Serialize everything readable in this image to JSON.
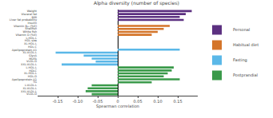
{
  "chart_data": {
    "type": "bar",
    "orientation": "horizontal",
    "title": "Alpha diversity (number of species)",
    "xlabel": "Spearman correlation",
    "categories": [
      "Weight",
      "Visceral fat",
      "BMI",
      "Liver fat probability",
      "Insulin",
      "Vitamin B₁₂ (%E)",
      "Shellfish",
      "White fish",
      "Vitamin D (%E)",
      "L-HDL-L",
      "HDL size",
      "XL-HDL-L",
      "HDL-C",
      "Apolipoprotein A1",
      "XL-VLDL-L",
      "GlycA",
      "MUFA",
      "VLDL-D",
      "XXL-VLDL-L",
      "L-HDL-L",
      "HDLC",
      "XL-HDL-L",
      "HDL-D",
      "Apolipoprotein A1",
      "TG",
      "L-VLDL-L",
      "XL-VLDL-L",
      "XXL-VLDL-L",
      "VLDL-D"
    ],
    "series": [
      {
        "name": "Personal",
        "color": "#5c3080",
        "values": [
          0.185,
          0.17,
          0.155,
          0.165,
          0.0,
          null,
          null,
          null,
          null,
          null,
          null,
          null,
          null,
          null,
          null,
          null,
          null,
          null,
          null,
          null,
          null,
          null,
          null,
          null,
          null,
          null,
          null,
          null,
          null
        ]
      },
      {
        "name": "Habitual diet",
        "color": "#d4752a",
        "values": [
          null,
          null,
          null,
          null,
          null,
          0.13,
          0.115,
          0.1,
          0.085,
          null,
          null,
          null,
          null,
          null,
          null,
          null,
          null,
          null,
          null,
          null,
          null,
          null,
          null,
          null,
          null,
          null,
          null,
          null,
          null
        ]
      },
      {
        "name": "Fasting",
        "color": "#5bb8e8",
        "values": [
          null,
          null,
          null,
          null,
          null,
          null,
          null,
          null,
          null,
          0.0,
          0.0,
          0.0,
          0.0,
          0.155,
          -0.155,
          -0.085,
          -0.065,
          -0.055,
          -0.14,
          null,
          null,
          null,
          null,
          null,
          null,
          null,
          null,
          null,
          null
        ]
      },
      {
        "name": "Postprandial",
        "color": "#3a9a4a",
        "values": [
          null,
          null,
          null,
          null,
          null,
          null,
          null,
          null,
          null,
          null,
          null,
          null,
          null,
          null,
          null,
          null,
          null,
          null,
          null,
          0.14,
          0.135,
          0.125,
          0.115,
          0.155,
          0.085,
          -0.065,
          -0.075,
          -0.08,
          -0.065
        ]
      }
    ],
    "xlim": [
      -0.2,
      0.2
    ],
    "xticks": [
      -0.15,
      {
        "value": -0.1,
        "label": "-0.10"
      },
      -0.05,
      0,
      0.05,
      {
        "value": 0.1,
        "label": "0.10"
      },
      0.15
    ],
    "grid": false
  }
}
